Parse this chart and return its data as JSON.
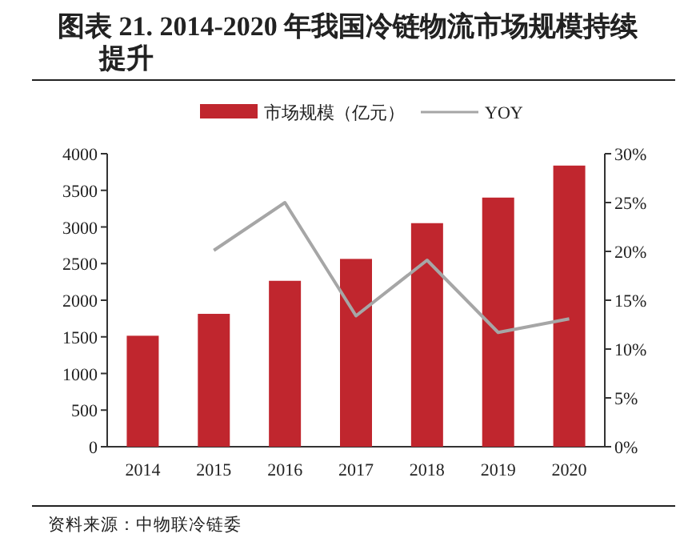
{
  "chart_data": {
    "type": "bar",
    "title": "图表 21. 2014-2020 年我国冷链物流市场规模持续提升",
    "categories": [
      "2014",
      "2015",
      "2016",
      "2017",
      "2018",
      "2019",
      "2020"
    ],
    "series": [
      {
        "name": "市场规模（亿元）",
        "color": "#c0262e",
        "values": [
          1515,
          1814,
          2265,
          2564,
          3052,
          3401,
          3838
        ]
      },
      {
        "name": "YOY",
        "type": "line",
        "axis": "y2",
        "color": "#a6a6a6",
        "values": [
          null,
          20.1,
          25.0,
          13.4,
          19.1,
          11.7,
          13.1
        ]
      }
    ],
    "ylim": [
      0,
      4000
    ],
    "yticks": [
      0,
      500,
      1000,
      1500,
      2000,
      2500,
      3000,
      3500,
      4000
    ],
    "y2lim": [
      0,
      30
    ],
    "y2ticks": [
      {
        "value": 0,
        "label": "0%"
      },
      {
        "value": 5,
        "label": "5%"
      },
      {
        "value": 10,
        "label": "10%"
      },
      {
        "value": 15,
        "label": "15%"
      },
      {
        "value": 20,
        "label": "20%"
      },
      {
        "value": 25,
        "label": "25%"
      },
      {
        "value": 30,
        "label": "30%"
      }
    ],
    "legend": "top",
    "annotations": [
      "资料来源：中物联冷链委"
    ]
  }
}
